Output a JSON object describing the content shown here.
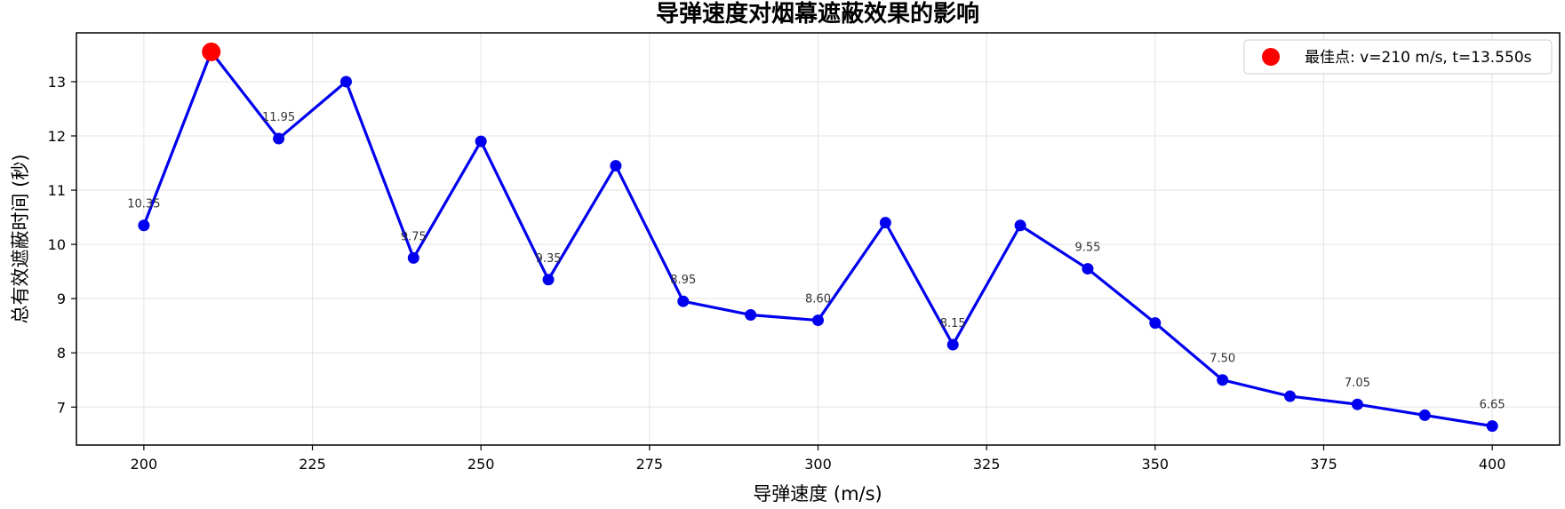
{
  "chart_data": {
    "type": "line",
    "title": "导弹速度对烟幕遮蔽效果的影响",
    "xlabel": "导弹速度 (m/s)",
    "ylabel": "总有效遮蔽时间 (秒)",
    "xlim": [
      190,
      410
    ],
    "ylim": [
      6.3,
      13.9
    ],
    "xticks": [
      200,
      225,
      250,
      275,
      300,
      325,
      350,
      375,
      400
    ],
    "yticks": [
      7,
      8,
      9,
      10,
      11,
      12,
      13
    ],
    "grid": true,
    "legend_position": "top-right",
    "series": [
      {
        "color": "#0000ee",
        "x": [
          200,
          210,
          220,
          230,
          240,
          250,
          260,
          270,
          280,
          290,
          300,
          310,
          320,
          330,
          340,
          350,
          360,
          370,
          380,
          390,
          400
        ],
        "y": [
          10.35,
          13.55,
          11.95,
          13.0,
          9.75,
          11.9,
          9.35,
          11.45,
          8.95,
          8.7,
          8.6,
          10.4,
          8.15,
          10.35,
          9.55,
          8.55,
          7.5,
          7.2,
          7.05,
          6.85,
          6.65
        ]
      }
    ],
    "data_labels": [
      {
        "x": 200,
        "y": 10.35,
        "text": "10.35"
      },
      {
        "x": 220,
        "y": 11.95,
        "text": "11.95"
      },
      {
        "x": 240,
        "y": 9.75,
        "text": "9.75"
      },
      {
        "x": 260,
        "y": 9.35,
        "text": "9.35"
      },
      {
        "x": 280,
        "y": 8.95,
        "text": "8.95"
      },
      {
        "x": 300,
        "y": 8.6,
        "text": "8.60"
      },
      {
        "x": 320,
        "y": 8.15,
        "text": "8.15"
      },
      {
        "x": 340,
        "y": 9.55,
        "text": "9.55"
      },
      {
        "x": 360,
        "y": 7.5,
        "text": "7.50"
      },
      {
        "x": 380,
        "y": 7.05,
        "text": "7.05"
      },
      {
        "x": 400,
        "y": 6.65,
        "text": "6.65"
      }
    ],
    "best_point": {
      "x": 210,
      "y": 13.55,
      "color": "#ff0000",
      "legend": "最佳点: v=210 m/s, t=13.550s"
    }
  }
}
